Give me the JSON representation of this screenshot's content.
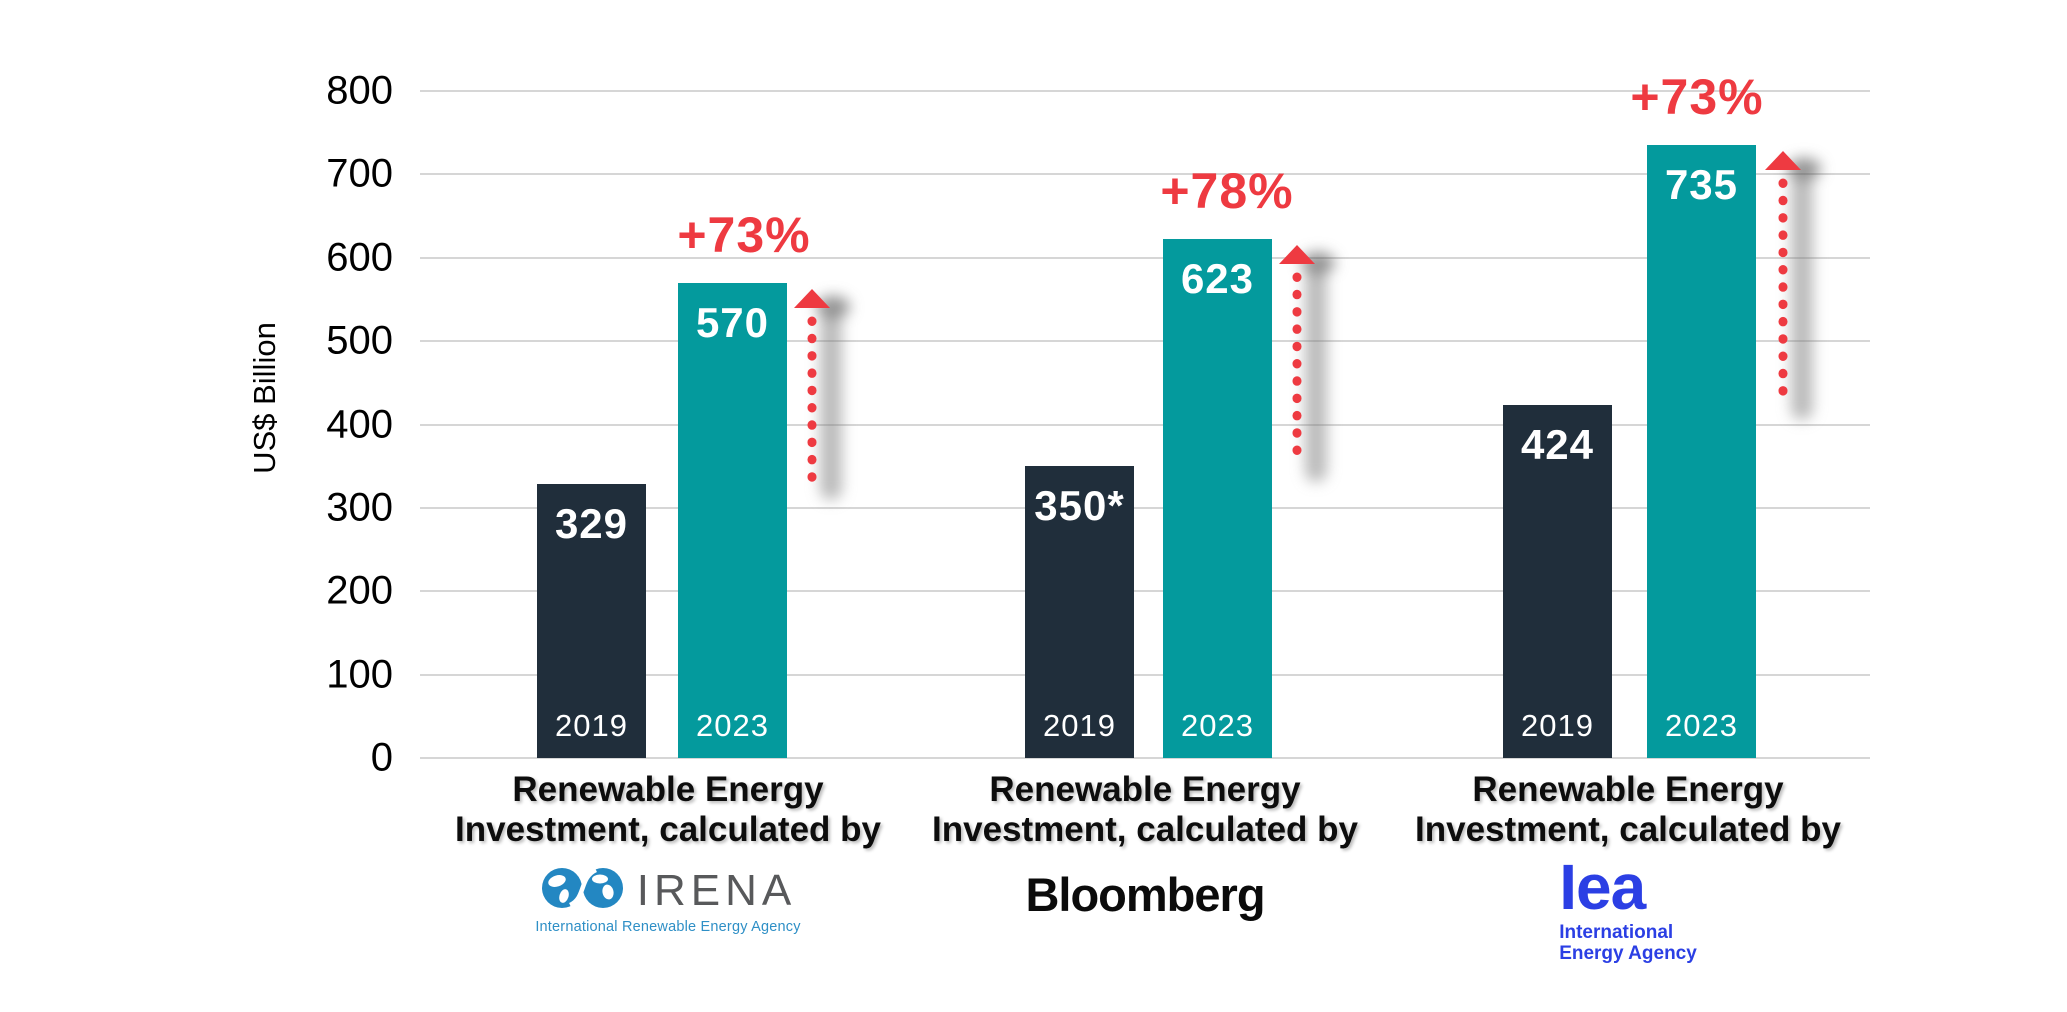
{
  "colors": {
    "bar_2019": "#202e3b",
    "bar_2023": "#049a9d",
    "accent_red": "#ee3a41",
    "gridline": "#d6d6d6",
    "irena_gray": "#58595b",
    "irena_blue": "#2e8fc6",
    "iea_blue": "#2b3fe4",
    "bloomberg_black": "#0b0b0b",
    "background": "#ffffff"
  },
  "chart_data": {
    "type": "bar",
    "title": "",
    "ylabel": "US$ Billion",
    "xlabel": "",
    "ylim": [
      0,
      800
    ],
    "yticks": [
      0,
      100,
      200,
      300,
      400,
      500,
      600,
      700,
      800
    ],
    "grid": true,
    "series_years": [
      "2019",
      "2023"
    ],
    "groups": [
      {
        "source": "IRENA",
        "caption": [
          "Renewable Energy",
          "Investment, calculated by"
        ],
        "bars": [
          {
            "year": "2019",
            "value": 329,
            "label": "329"
          },
          {
            "year": "2023",
            "value": 570,
            "label": "570"
          }
        ],
        "change_label": "+73%",
        "logo": {
          "name": "IRENA",
          "text": "IRENA",
          "tagline": "International Renewable Energy Agency"
        }
      },
      {
        "source": "Bloomberg",
        "caption": [
          "Renewable Energy",
          "Investment, calculated by"
        ],
        "bars": [
          {
            "year": "2019",
            "value": 350,
            "label": "350*"
          },
          {
            "year": "2023",
            "value": 623,
            "label": "623"
          }
        ],
        "change_label": "+78%",
        "logo": {
          "name": "Bloomberg",
          "text": "Bloomberg"
        }
      },
      {
        "source": "IEA",
        "caption": [
          "Renewable Energy",
          "Investment, calculated by"
        ],
        "bars": [
          {
            "year": "2019",
            "value": 424,
            "label": "424"
          },
          {
            "year": "2023",
            "value": 735,
            "label": "735"
          }
        ],
        "change_label": "+73%",
        "logo": {
          "name": "IEA",
          "text": "Iea",
          "tagline_line1": "International",
          "tagline_line2": "Energy Agency"
        }
      }
    ]
  }
}
